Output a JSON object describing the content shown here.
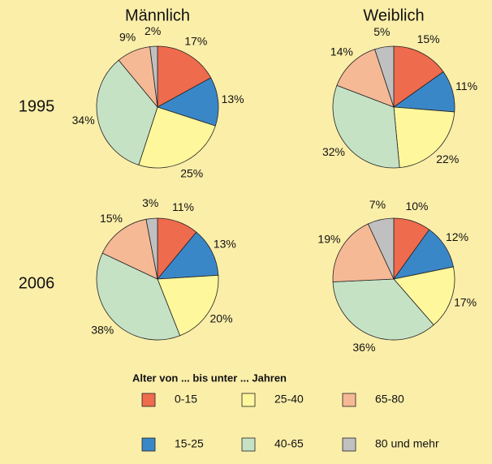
{
  "columns": [
    "Männlich",
    "Weiblich"
  ],
  "rows": [
    "1995",
    "2006"
  ],
  "legend": {
    "title": "Alter von ... bis unter ... Jahren",
    "categories": [
      "0-15",
      "15-25",
      "25-40",
      "40-65",
      "65-80",
      "80 und mehr"
    ],
    "colors": [
      "#ee6b4d",
      "#3a87c8",
      "#fef79c",
      "#c5e2c5",
      "#f5b995",
      "#c0c0c0"
    ]
  },
  "chart_data": [
    {
      "type": "pie",
      "values": [
        17,
        13,
        25,
        34,
        9,
        2
      ],
      "value_labels": [
        "17%",
        "13%",
        "25%",
        "34%",
        "9%",
        "2%"
      ]
    },
    {
      "type": "pie",
      "values": [
        15,
        11,
        22,
        32,
        14,
        5
      ],
      "value_labels": [
        "15%",
        "11%",
        "22%",
        "32%",
        "14%",
        "5%"
      ]
    },
    {
      "type": "pie",
      "values": [
        11,
        13,
        20,
        38,
        15,
        3
      ],
      "value_labels": [
        "11%",
        "13%",
        "20%",
        "38%",
        "15%",
        "3%"
      ]
    },
    {
      "type": "pie",
      "values": [
        10,
        12,
        17,
        36,
        19,
        7
      ],
      "value_labels": [
        "10%",
        "12%",
        "17%",
        "36%",
        "19%",
        "7%"
      ]
    }
  ]
}
